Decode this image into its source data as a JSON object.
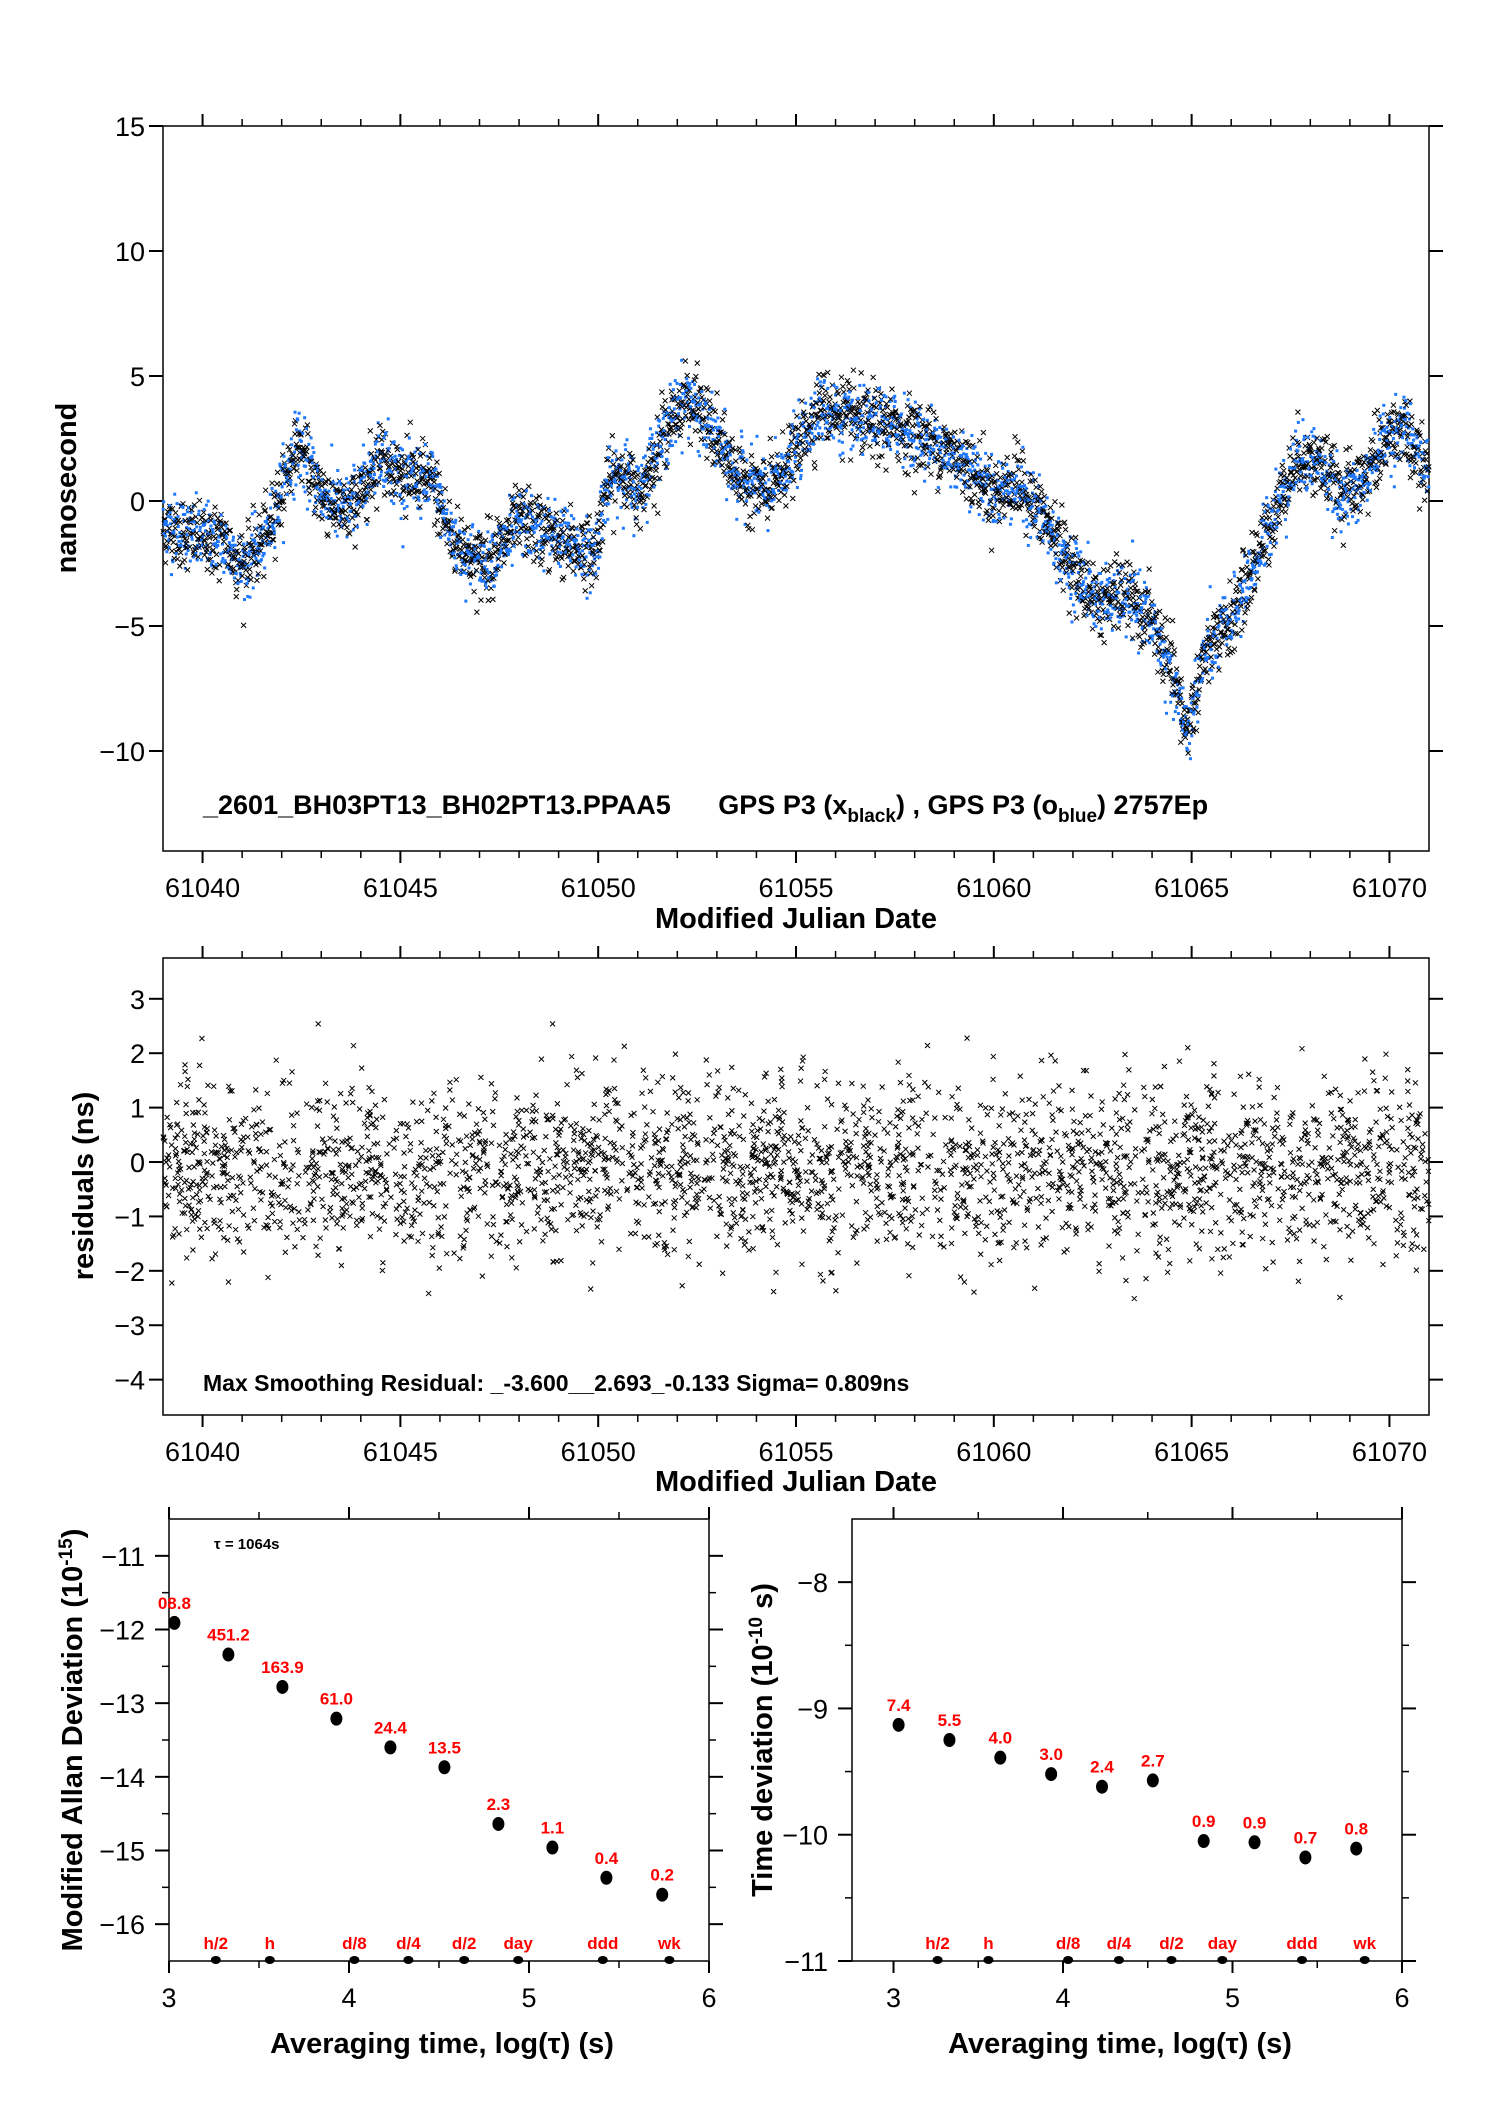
{
  "chart_data": [
    {
      "type": "scatter",
      "title": "_2601_BH03PT13_BH02PT13.PPAA5",
      "legend_parts": {
        "a": "GPS P3 (x",
        "a_sub": "black",
        "b": ") ,  GPS P3 (o",
        "b_sub": "blue",
        "c": ")  2757Ep"
      },
      "xlabel": "Modified Julian Date",
      "ylabel": "nanosecond",
      "xlim": [
        61039,
        61071
      ],
      "ylim": [
        -14,
        15
      ],
      "xticks": [
        "61040",
        "61045",
        "61050",
        "61055",
        "61060",
        "61065",
        "61070"
      ],
      "yticks": [
        "15",
        "10",
        "5",
        "0",
        "−5",
        "−10"
      ],
      "epochs": 2757,
      "series": [
        {
          "name": "GPS P3 x",
          "color": "#000000",
          "marker": "x",
          "noise_sigma": 0.7
        },
        {
          "name": "GPS P3 o",
          "color": "#1e78ff",
          "marker": "dot",
          "noise_sigma": 0.7
        }
      ],
      "trend": [
        [
          61039,
          -1
        ],
        [
          61040,
          -1.5
        ],
        [
          61040.5,
          -1.6
        ],
        [
          61041,
          -2.6
        ],
        [
          61041.6,
          -1.5
        ],
        [
          61042,
          0.5
        ],
        [
          61042.4,
          2.3
        ],
        [
          61043,
          0.3
        ],
        [
          61043.6,
          -0.5
        ],
        [
          61044,
          0.3
        ],
        [
          61044.5,
          2.0
        ],
        [
          61045,
          1.0
        ],
        [
          61045.8,
          0.8
        ],
        [
          61046.3,
          -1.5
        ],
        [
          61047,
          -2.5
        ],
        [
          61047.6,
          -1.8
        ],
        [
          61048,
          -0.8
        ],
        [
          61049,
          -1.5
        ],
        [
          61049.9,
          -2.2
        ],
        [
          61050.2,
          0.5
        ],
        [
          61050.6,
          1.2
        ],
        [
          61051,
          0.2
        ],
        [
          61051.6,
          2.5
        ],
        [
          61052.2,
          4.2
        ],
        [
          61052.8,
          3.0
        ],
        [
          61053.5,
          1.0
        ],
        [
          61054.3,
          0.3
        ],
        [
          61055,
          2.0
        ],
        [
          61055.6,
          3.8
        ],
        [
          61056.5,
          3.2
        ],
        [
          61057.5,
          3.0
        ],
        [
          61058.5,
          2.3
        ],
        [
          61059.3,
          1.5
        ],
        [
          61060,
          0.3
        ],
        [
          61060.6,
          0.7
        ],
        [
          61061.3,
          -0.8
        ],
        [
          61062,
          -2.8
        ],
        [
          61062.6,
          -4.0
        ],
        [
          61063.3,
          -3.8
        ],
        [
          61064,
          -4.8
        ],
        [
          61064.5,
          -7.0
        ],
        [
          61064.9,
          -9.2
        ],
        [
          61065.3,
          -6.3
        ],
        [
          61066,
          -4.8
        ],
        [
          61066.6,
          -2.5
        ],
        [
          61067.2,
          0.0
        ],
        [
          61067.7,
          1.8
        ],
        [
          61068.3,
          1.5
        ],
        [
          61068.7,
          0.2
        ],
        [
          61069.3,
          0.6
        ],
        [
          61069.8,
          2.3
        ],
        [
          61070.3,
          3.0
        ],
        [
          61071,
          1.0
        ]
      ]
    },
    {
      "type": "scatter",
      "xlabel": "Modified Julian Date",
      "ylabel": "residuals (ns)",
      "xlim": [
        61039,
        61071
      ],
      "ylim": [
        -4.65,
        3.75
      ],
      "xticks": [
        "61040",
        "61045",
        "61050",
        "61055",
        "61060",
        "61065",
        "61070"
      ],
      "yticks": [
        "3",
        "2",
        "1",
        "0",
        "−1",
        "−2",
        "−3",
        "−4"
      ],
      "annotation": "Max Smoothing Residual: _-3.600__2.693_-0.133  Sigma= 0.809ns",
      "min": -3.6,
      "max": 2.693,
      "mean": -0.133,
      "sigma": 0.809,
      "series": [
        {
          "name": "residuals",
          "color": "#000000",
          "marker": "x",
          "count": 2757
        }
      ]
    },
    {
      "type": "scatter",
      "xlabel": "Averaging time, log(τ) (s)",
      "ylabel": "Modified Allan Deviation (10",
      "ylabel_sup": "-15",
      "ylabel_end": ")",
      "annotation": "τ = 1064s",
      "xlim": [
        3,
        6
      ],
      "ylim": [
        -16.5,
        -10.5
      ],
      "xticks": [
        "3",
        "4",
        "5",
        "6"
      ],
      "yticks": [
        "−11",
        "−12",
        "−13",
        "−14",
        "−15",
        "−16"
      ],
      "x": [
        3.03,
        3.33,
        3.63,
        3.93,
        4.23,
        4.53,
        4.83,
        5.13,
        5.43,
        5.74
      ],
      "y": [
        -11.91,
        -12.34,
        -12.78,
        -13.21,
        -13.6,
        -13.87,
        -14.64,
        -14.96,
        -15.37,
        -15.6
      ],
      "labels": [
        "08.8",
        "451.2",
        "163.9",
        "61.0",
        "24.4",
        "13.5",
        "2.3",
        "1.1",
        "0.4",
        "0.2"
      ],
      "markers": {
        "labels": [
          "h/2",
          "h",
          "d/8",
          "d/4",
          "d/2",
          "day",
          "ddd",
          "wk"
        ],
        "x": [
          3.26,
          3.56,
          4.03,
          4.33,
          4.64,
          4.94,
          5.41,
          5.78
        ]
      }
    },
    {
      "type": "scatter",
      "xlabel": "Averaging time, log(τ) (s)",
      "ylabel": "Time deviation (10",
      "ylabel_sup": "-10",
      "ylabel_end": " s)",
      "xlim": [
        2.755,
        6
      ],
      "ylim": [
        -11,
        -7.5
      ],
      "xticks": [
        "3",
        "4",
        "5",
        "6"
      ],
      "yticks": [
        "−8",
        "−9",
        "−10",
        "−11"
      ],
      "x": [
        3.03,
        3.33,
        3.63,
        3.93,
        4.23,
        4.53,
        4.83,
        5.13,
        5.43,
        5.73
      ],
      "y": [
        -9.13,
        -9.25,
        -9.39,
        -9.52,
        -9.62,
        -9.57,
        -10.05,
        -10.06,
        -10.18,
        -10.11
      ],
      "labels": [
        "7.4",
        "5.5",
        "4.0",
        "3.0",
        "2.4",
        "2.7",
        "0.9",
        "0.9",
        "0.7",
        "0.8"
      ],
      "markers": {
        "labels": [
          "h/2",
          "h",
          "d/8",
          "d/4",
          "d/2",
          "day",
          "ddd",
          "wk"
        ],
        "x": [
          3.26,
          3.56,
          4.03,
          4.33,
          4.64,
          4.94,
          5.41,
          5.78
        ]
      }
    }
  ]
}
